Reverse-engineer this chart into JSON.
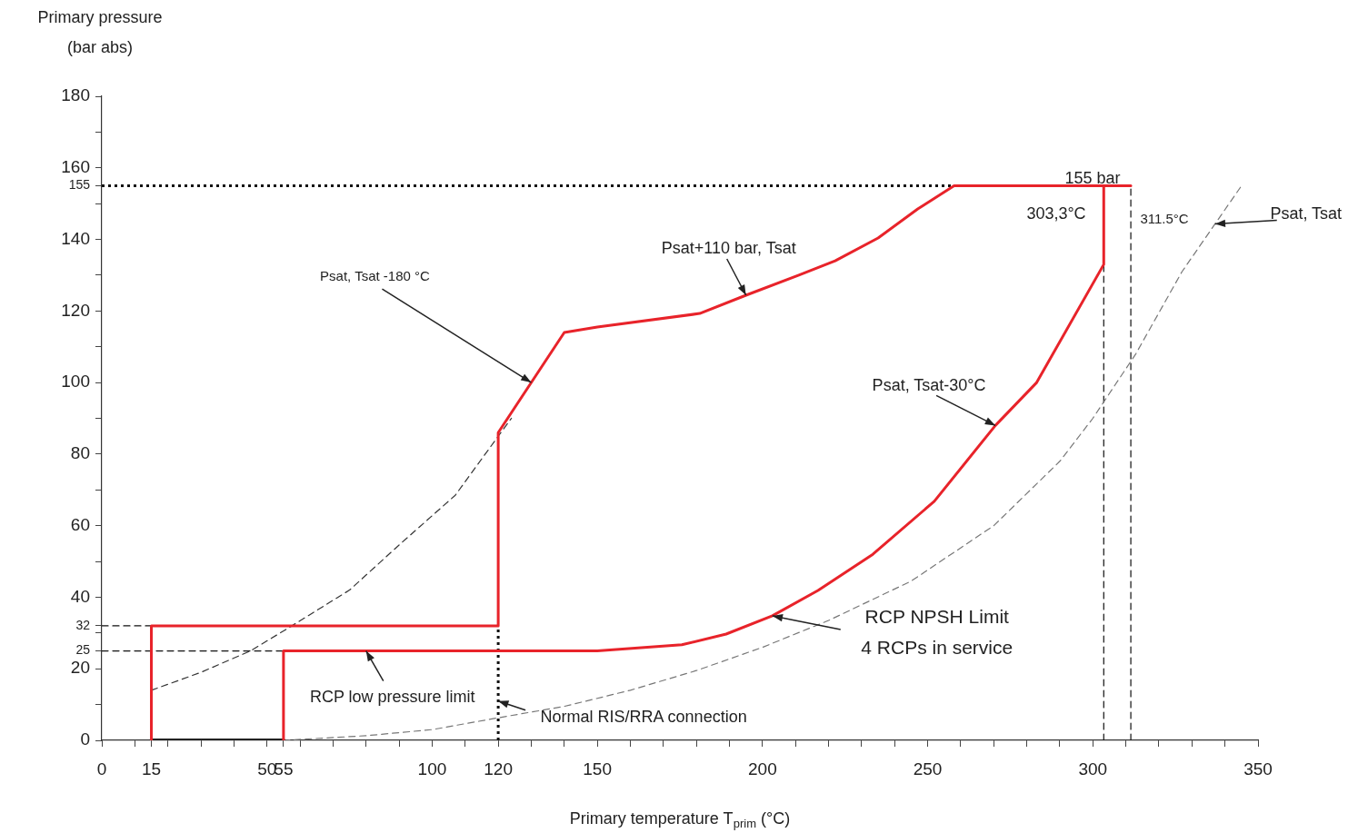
{
  "chart_data": {
    "type": "line",
    "xlabel": "Primary temperature T$_{prim}$ (°C)",
    "ylabel": "Primary pressure\n(bar abs)",
    "xlim": [
      0,
      350
    ],
    "xticks": [
      0,
      {
        "value": 10,
        "label": null
      },
      15,
      {
        "value": 20,
        "label": null
      },
      {
        "value": 30,
        "label": null
      },
      {
        "value": 40,
        "label": null
      },
      50,
      55,
      {
        "value": 60,
        "label": null
      },
      {
        "value": 70,
        "label": null
      },
      {
        "value": 80,
        "label": null
      },
      {
        "value": 90,
        "label": null
      },
      100,
      {
        "value": 110,
        "label": null
      },
      120,
      {
        "value": 130,
        "label": null
      },
      {
        "value": 140,
        "label": null
      },
      150,
      {
        "value": 160,
        "label": null
      },
      {
        "value": 170,
        "label": null
      },
      {
        "value": 180,
        "label": null
      },
      {
        "value": 190,
        "label": null
      },
      200,
      {
        "value": 210,
        "label": null
      },
      {
        "value": 220,
        "label": null
      },
      {
        "value": 230,
        "label": null
      },
      {
        "value": 240,
        "label": null
      },
      250,
      {
        "value": 260,
        "label": null
      },
      {
        "value": 270,
        "label": null
      },
      {
        "value": 280,
        "label": null
      },
      {
        "value": 290,
        "label": null
      },
      300,
      {
        "value": 310,
        "label": null
      },
      {
        "value": 320,
        "label": null
      },
      {
        "value": 330,
        "label": null
      },
      {
        "value": 340,
        "label": null
      },
      350
    ],
    "ylim": [
      0,
      180
    ],
    "yticks": [
      0,
      {
        "value": 10,
        "label": null
      },
      20,
      25,
      {
        "value": 30,
        "label": null
      },
      32,
      40,
      {
        "value": 50,
        "label": null
      },
      60,
      {
        "value": 70,
        "label": null
      },
      80,
      {
        "value": 90,
        "label": null
      },
      100,
      {
        "value": 110,
        "label": null
      },
      120,
      {
        "value": 130,
        "label": null
      },
      140,
      {
        "value": 150,
        "label": null
      },
      155,
      160,
      {
        "value": 170,
        "label": null
      },
      180
    ],
    "grid": false,
    "legend": false,
    "marker": "none",
    "series": [
      {
        "color": "#e8232a",
        "line_style": "solid",
        "x": [
          55,
          55,
          150,
          175.6,
          189,
          203,
          216.8,
          233.4,
          252,
          270.5,
          283,
          303.3,
          303.3
        ],
        "values": [
          0,
          25,
          25,
          26.7,
          29.7,
          34.8,
          41.9,
          52,
          66.8,
          88,
          100,
          133,
          155
        ]
      },
      {
        "color": "#e8232a",
        "line_style": "solid",
        "x": [
          15,
          15,
          120,
          120,
          140,
          150,
          181,
          195,
          211,
          222,
          235,
          247,
          258,
          311.5
        ],
        "values": [
          0,
          32,
          32,
          86,
          114,
          115.5,
          119.3,
          124.4,
          130,
          134,
          140.4,
          148.5,
          155,
          155
        ]
      },
      {
        "color": "#222222",
        "line_style": "solid",
        "x": [
          15,
          55
        ],
        "values": [
          0,
          0
        ]
      },
      {
        "color": "#333333",
        "line_style": "dashed",
        "x": [
          15,
          30,
          45,
          57,
          75,
          90,
          107,
          120,
          124
        ],
        "values": [
          14,
          19,
          25,
          31.7,
          42,
          54.6,
          68.5,
          85,
          90
        ]
      },
      {
        "color": "#777777",
        "line_style": "dashed",
        "x": [
          55,
          80,
          100,
          120,
          140,
          160,
          180,
          200,
          220,
          245,
          270,
          290,
          300,
          313,
          327,
          345
        ],
        "values": [
          0,
          1.3,
          3,
          6.3,
          9.5,
          14,
          19.5,
          26,
          33.5,
          44.5,
          60,
          78,
          90,
          108,
          131,
          155
        ]
      },
      {
        "color": "#111111",
        "line_style": "dotted",
        "x": [
          0,
          311.5
        ],
        "values": [
          155,
          155
        ]
      },
      {
        "color": "#111111",
        "line_style": "dashed",
        "x": [
          0,
          15
        ],
        "values": [
          32,
          32
        ]
      },
      {
        "color": "#111111",
        "line_style": "dashed",
        "x": [
          0,
          55
        ],
        "values": [
          25,
          25
        ]
      },
      {
        "color": "#111111",
        "line_style": "dotted",
        "x": [
          120,
          120
        ],
        "values": [
          0,
          32
        ]
      },
      {
        "color": "#111111",
        "line_style": "dashed",
        "x": [
          303.3,
          303.3
        ],
        "values": [
          0,
          133
        ]
      },
      {
        "color": "#111111",
        "line_style": "dashed",
        "x": [
          311.5,
          311.5
        ],
        "values": [
          0,
          155
        ]
      }
    ],
    "annotations": [
      {
        "text": "Psat, Tsat -180 °C",
        "x": 130,
        "y": 100
      },
      {
        "text": "Psat+110 bar, Tsat",
        "x": 195,
        "y": 124.4
      },
      {
        "text": "Psat, Tsat-30°C",
        "x": 270.5,
        "y": 88
      },
      {
        "text": "Psat, Tsat",
        "x": 337,
        "y": 144.3
      },
      {
        "text": "RCP NPSH Limit\n4 RCPs in service",
        "x": 203,
        "y": 34.8
      },
      {
        "text": "RCP low pressure limit",
        "x": 80,
        "y": 25
      },
      {
        "text": "Normal RIS/RRA connection",
        "x": 120,
        "y": 11
      },
      "155 bar",
      "303,3°C",
      "311.5°C"
    ]
  }
}
